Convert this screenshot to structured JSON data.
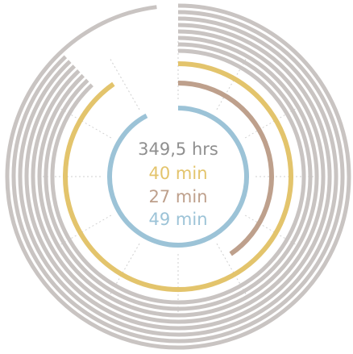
{
  "chart_data": {
    "type": "radial-bar",
    "unit_note": "values are fractions of a full circle, measured clockwise from 12 o'clock",
    "outer_rings": {
      "color": "#c9c4c2",
      "fractions": [
        0.98,
        0.88,
        0.88,
        0.88,
        0.88,
        0.88,
        0.88,
        0.88
      ]
    },
    "series": [
      {
        "label": "40 min",
        "fraction": 0.903,
        "color": "#e3c46c"
      },
      {
        "label": "27 min",
        "fraction": 0.405,
        "color": "#bea08c"
      },
      {
        "label": "49 min",
        "fraction": 0.924,
        "color": "#9cc3d7"
      }
    ],
    "center_labels": [
      {
        "text": "349,5 hrs",
        "color": "#8f8f8f"
      },
      {
        "text": "40 min",
        "color": "#e3c46c"
      },
      {
        "text": "27 min",
        "color": "#bea08c"
      },
      {
        "text": "49 min",
        "color": "#9cc3d7"
      }
    ],
    "grid": {
      "dashed_spokes": 12,
      "color": "#cfcfcf"
    }
  }
}
